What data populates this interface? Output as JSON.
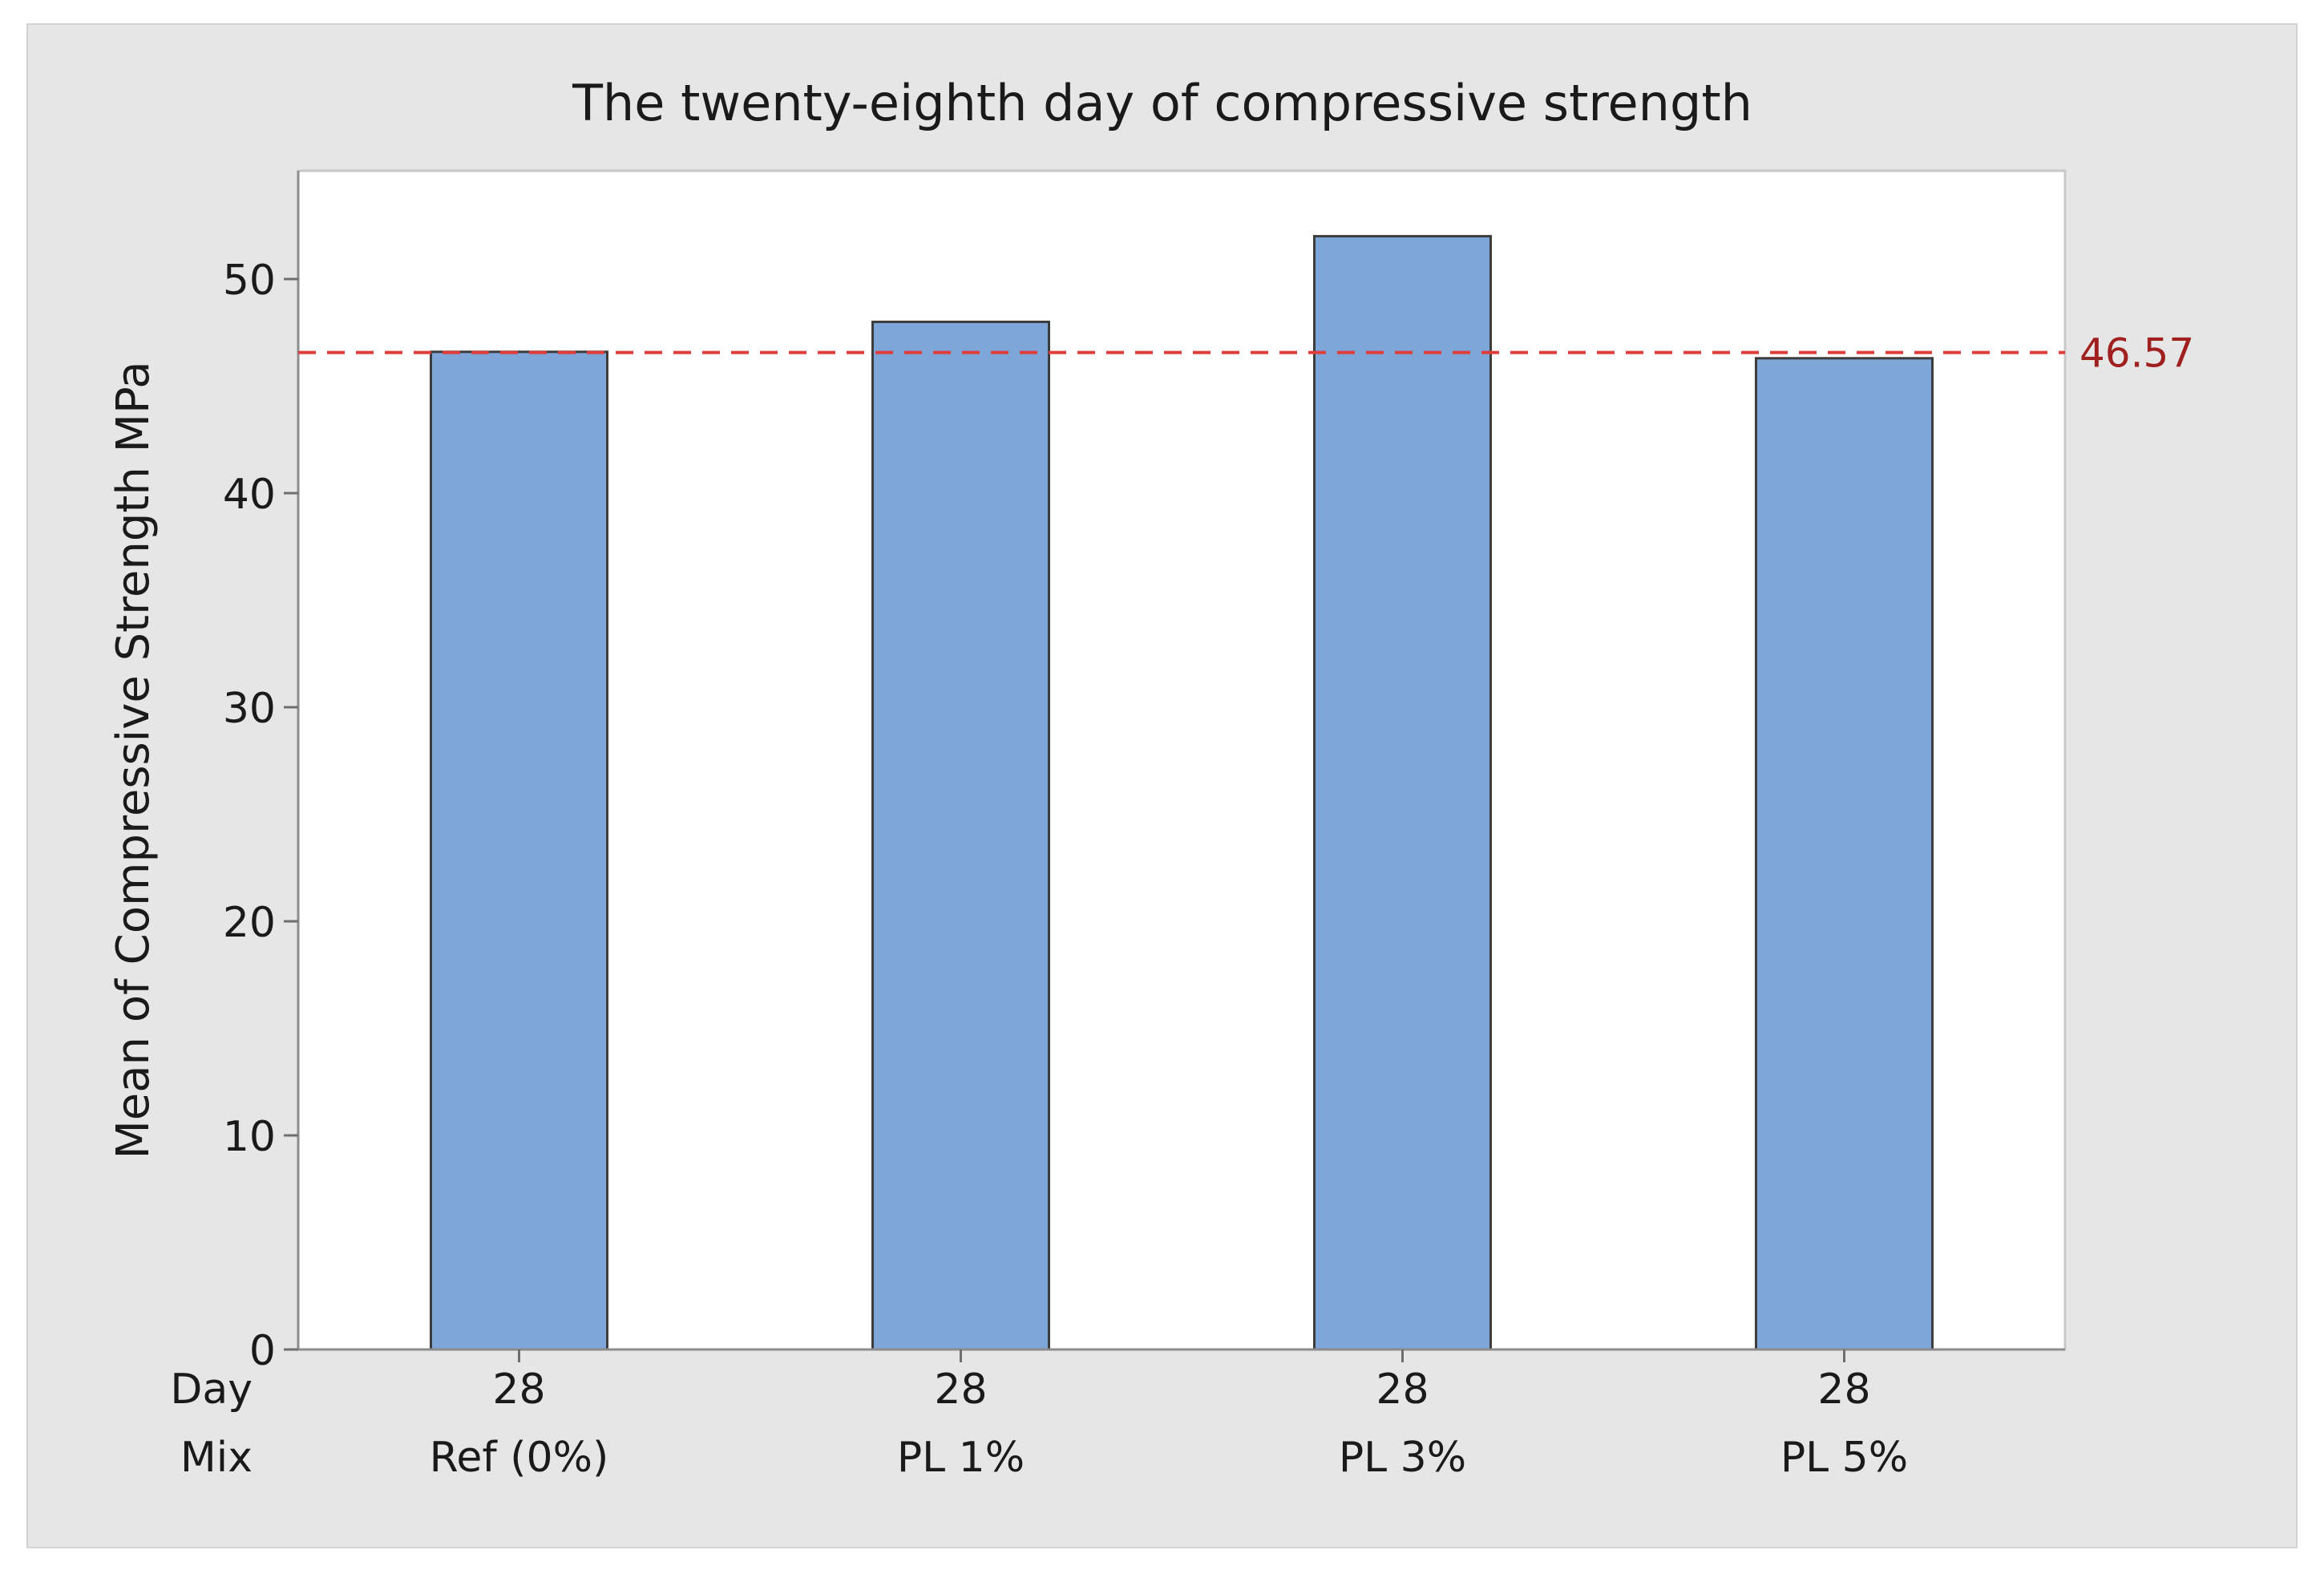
{
  "chart_data": {
    "type": "bar",
    "title": "The twenty-eighth day of compressive strength",
    "xlabel": "",
    "ylabel": "Mean of Compressive Strength MPa",
    "ylim": [
      0,
      55
    ],
    "yticks": [
      0,
      10,
      20,
      30,
      40,
      50
    ],
    "x_row_labels": [
      "Day",
      "Mix"
    ],
    "categories": [
      {
        "day": "28",
        "mix": "Ref (0%)"
      },
      {
        "day": "28",
        "mix": "PL 1%"
      },
      {
        "day": "28",
        "mix": "PL 3%"
      },
      {
        "day": "28",
        "mix": "PL 5%"
      }
    ],
    "values": [
      46.6,
      48.0,
      52.0,
      46.3
    ],
    "reference_line": {
      "value": 46.57,
      "label": "46.57",
      "style": "dashed"
    },
    "grid": false,
    "legend": "none",
    "colors": {
      "outer_background": "#e6e6e6",
      "plot_background": "#ffffff",
      "bar_fill": "#7ea6d8",
      "bar_stroke": "#3c3c3c",
      "reference_line": "#e03c3c",
      "reference_label": "#a02020",
      "text": "#1a1a1a"
    }
  }
}
